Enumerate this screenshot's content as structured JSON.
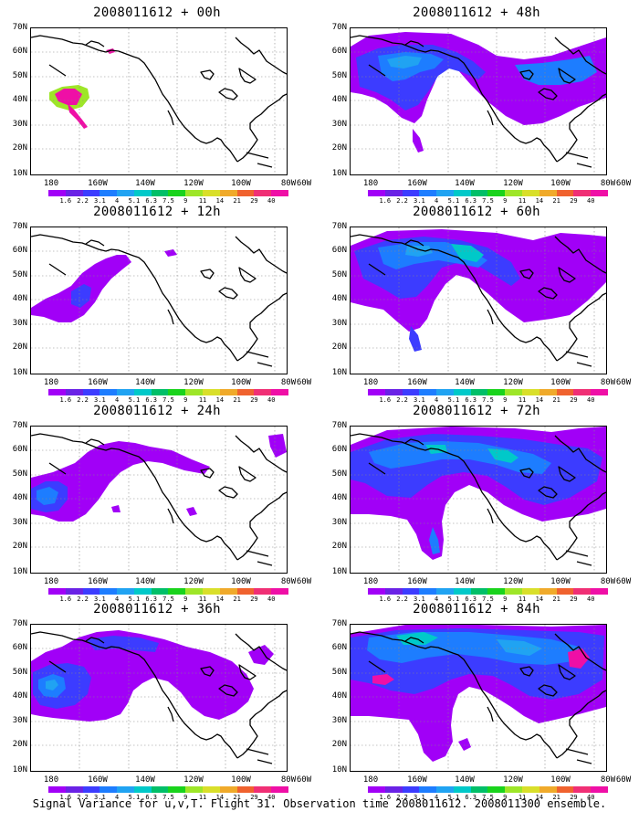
{
  "footer": "Signal Variance for u,v,T. Flight 31. Observation time 2008011612. 2008011300 ensemble.",
  "axes": {
    "y_labels": [
      "70N",
      "60N",
      "50N",
      "40N",
      "30N",
      "20N",
      "10N"
    ],
    "x_labels": [
      "180",
      "160W",
      "140W",
      "120W",
      "100W",
      "80W",
      "60W"
    ]
  },
  "colorbar": {
    "labels": [
      "1.6",
      "2.2",
      "3.1",
      "4",
      "5.1",
      "6.3",
      "7.5",
      "9",
      "11",
      "14",
      "21",
      "29",
      "40"
    ],
    "colors": [
      "#a100f7",
      "#6a22e6",
      "#3c3cff",
      "#1d7dff",
      "#20a3f2",
      "#00c9c9",
      "#00bf68",
      "#19d31c",
      "#9ee628",
      "#d9df2a",
      "#f0aa2a",
      "#f0622e",
      "#f02f75",
      "#ef0fa6"
    ]
  },
  "panels": [
    {
      "title": "2008011612 + 00h"
    },
    {
      "title": "2008011612 + 48h"
    },
    {
      "title": "2008011612 + 12h"
    },
    {
      "title": "2008011612 + 60h"
    },
    {
      "title": "2008011612 + 24h"
    },
    {
      "title": "2008011612 + 72h"
    },
    {
      "title": "2008011612 + 36h"
    },
    {
      "title": "2008011612 + 84h"
    }
  ]
}
